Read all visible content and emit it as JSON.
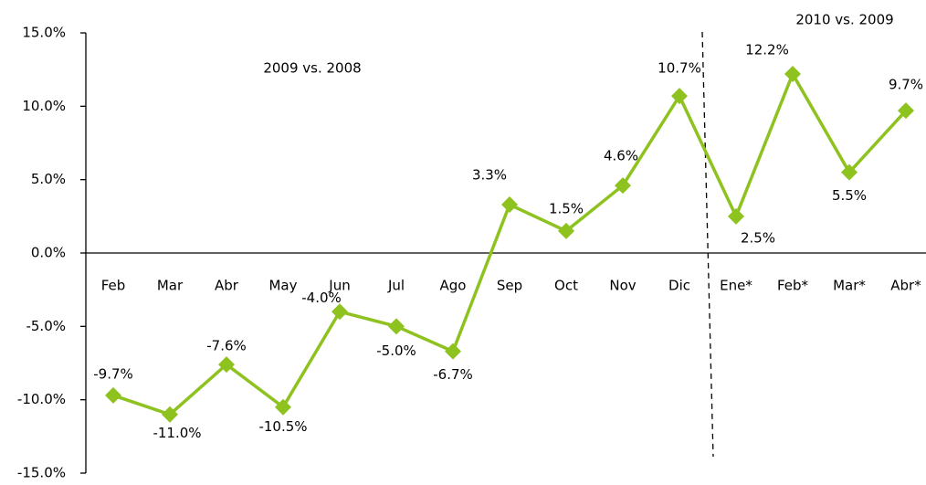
{
  "chart_data": {
    "type": "line",
    "annotations": [
      "2009 vs. 2008",
      "2010 vs. 2009"
    ],
    "categories": [
      "Feb",
      "Mar",
      "Abr",
      "May",
      "Jun",
      "Jul",
      "Ago",
      "Sep",
      "Oct",
      "Nov",
      "Dic",
      "Ene*",
      "Feb*",
      "Mar*",
      "Abr*"
    ],
    "series": [
      {
        "color": "#8dc21f",
        "values": [
          -9.7,
          -11.0,
          -7.6,
          -10.5,
          -4.0,
          -5.0,
          -6.7,
          3.3,
          1.5,
          4.6,
          10.7,
          2.5,
          12.2,
          5.5,
          9.7
        ],
        "value_labels": [
          "-9.7%",
          "-11.0%",
          "-7.6%",
          "-10.5%",
          "-4.0%",
          "-5.0%",
          "-6.7%",
          "3.3%",
          "1.5%",
          "4.6%",
          "10.7%",
          "2.5%",
          "12.2%",
          "5.5%",
          "9.7%"
        ]
      }
    ],
    "ylim": [
      -15,
      15
    ],
    "yticks": [
      {
        "value": -15,
        "label": "-15.0%"
      },
      {
        "value": -10,
        "label": "-10.0%"
      },
      {
        "value": -5,
        "label": "-5.0%"
      },
      {
        "value": 0,
        "label": "0.0%"
      },
      {
        "value": 5,
        "label": "5.0%"
      },
      {
        "value": 10,
        "label": "10.0%"
      },
      {
        "value": 15,
        "label": "15.0%"
      }
    ]
  }
}
